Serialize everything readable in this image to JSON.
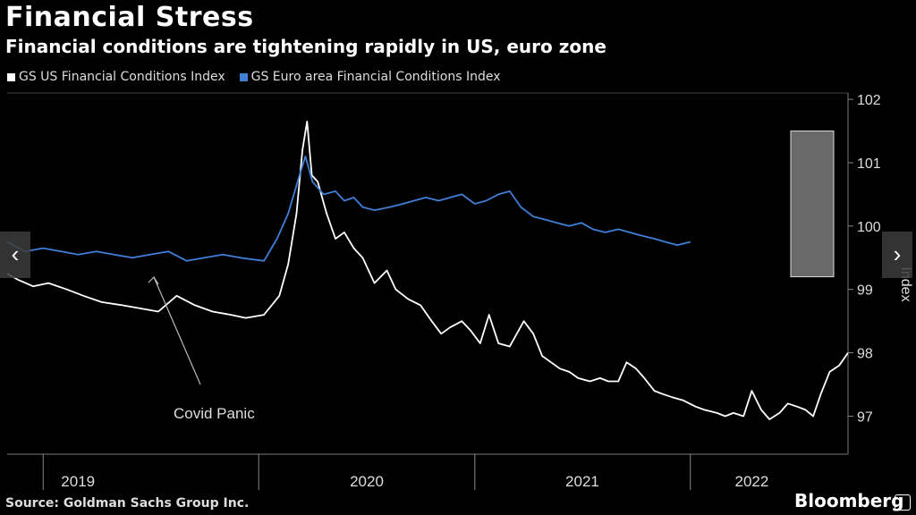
{
  "title": "Financial Stress",
  "subtitle": "Financial conditions are tightening rapidly in US, euro zone",
  "source": "Source: Goldman Sachs Group Inc.",
  "brand": "Bloomberg",
  "icons": {
    "prev": "chevron-left-icon",
    "next": "chevron-right-icon"
  },
  "colors": {
    "us": "#ffffff",
    "euro": "#3f7fd6",
    "background": "#000000",
    "highlight": "#bfbfbf"
  },
  "annotation": "Covid Panic",
  "chart_data": {
    "type": "line",
    "title": "Financial Stress",
    "ylabel": "Index",
    "ylim": [
      96.4,
      102.1
    ],
    "yticks": [
      97,
      98,
      99,
      100,
      101,
      102
    ],
    "xlim": [
      "2018-11-01",
      "2022-09-25"
    ],
    "xticks": [
      "2019",
      "2020",
      "2021",
      "2022"
    ],
    "legend": "top-left",
    "grid": false,
    "series": [
      {
        "name": "GS US Financial Conditions Index",
        "color": "#ffffff",
        "points": [
          [
            "2018-11-01",
            99.25
          ],
          [
            "2018-11-20",
            99.15
          ],
          [
            "2018-12-15",
            99.05
          ],
          [
            "2019-01-10",
            99.1
          ],
          [
            "2019-02-10",
            99.0
          ],
          [
            "2019-03-10",
            98.9
          ],
          [
            "2019-04-10",
            98.8
          ],
          [
            "2019-05-15",
            98.75
          ],
          [
            "2019-06-15",
            98.7
          ],
          [
            "2019-07-15",
            98.65
          ],
          [
            "2019-08-15",
            98.9
          ],
          [
            "2019-09-15",
            98.75
          ],
          [
            "2019-10-15",
            98.65
          ],
          [
            "2019-11-15",
            98.6
          ],
          [
            "2019-12-10",
            98.55
          ],
          [
            "2020-01-10",
            98.6
          ],
          [
            "2020-02-05",
            98.9
          ],
          [
            "2020-02-20",
            99.4
          ],
          [
            "2020-03-05",
            100.2
          ],
          [
            "2020-03-15",
            101.2
          ],
          [
            "2020-03-23",
            101.65
          ],
          [
            "2020-03-31",
            100.8
          ],
          [
            "2020-04-10",
            100.7
          ],
          [
            "2020-04-25",
            100.2
          ],
          [
            "2020-05-10",
            99.8
          ],
          [
            "2020-05-25",
            99.9
          ],
          [
            "2020-06-10",
            99.65
          ],
          [
            "2020-06-25",
            99.5
          ],
          [
            "2020-07-15",
            99.1
          ],
          [
            "2020-08-05",
            99.3
          ],
          [
            "2020-08-20",
            99.0
          ],
          [
            "2020-09-10",
            98.85
          ],
          [
            "2020-10-01",
            98.75
          ],
          [
            "2020-10-20",
            98.5
          ],
          [
            "2020-11-05",
            98.3
          ],
          [
            "2020-11-20",
            98.4
          ],
          [
            "2020-12-10",
            98.5
          ],
          [
            "2020-12-25",
            98.35
          ],
          [
            "2021-01-10",
            98.15
          ],
          [
            "2021-01-25",
            98.6
          ],
          [
            "2021-02-10",
            98.15
          ],
          [
            "2021-03-01",
            98.1
          ],
          [
            "2021-03-25",
            98.5
          ],
          [
            "2021-04-10",
            98.3
          ],
          [
            "2021-04-25",
            97.95
          ],
          [
            "2021-05-10",
            97.85
          ],
          [
            "2021-05-25",
            97.75
          ],
          [
            "2021-06-10",
            97.7
          ],
          [
            "2021-06-25",
            97.6
          ],
          [
            "2021-07-15",
            97.55
          ],
          [
            "2021-08-01",
            97.6
          ],
          [
            "2021-08-15",
            97.55
          ],
          [
            "2021-09-01",
            97.55
          ],
          [
            "2021-09-15",
            97.85
          ],
          [
            "2021-10-01",
            97.75
          ],
          [
            "2021-10-15",
            97.6
          ],
          [
            "2021-11-01",
            97.4
          ],
          [
            "2021-11-15",
            97.35
          ],
          [
            "2021-12-01",
            97.3
          ],
          [
            "2021-12-20",
            97.25
          ],
          [
            "2022-01-10",
            97.15
          ],
          [
            "2022-01-25",
            97.1
          ],
          [
            "2022-02-15",
            97.05
          ],
          [
            "2022-03-01",
            97.0
          ],
          [
            "2022-03-15",
            97.05
          ],
          [
            "2022-04-01",
            97.0
          ],
          [
            "2022-04-15",
            97.4
          ],
          [
            "2022-05-01",
            97.1
          ],
          [
            "2022-05-15",
            96.95
          ],
          [
            "2022-06-01",
            97.05
          ],
          [
            "2022-06-15",
            97.2
          ],
          [
            "2022-07-01",
            97.15
          ],
          [
            "2022-07-15",
            97.1
          ],
          [
            "2022-07-28",
            97.0
          ],
          [
            "2022-08-10",
            97.35
          ],
          [
            "2022-08-25",
            97.7
          ],
          [
            "2022-09-10",
            97.8
          ],
          [
            "2022-09-25",
            98.0
          ]
        ]
      },
      {
        "name": "GS Euro area Financial Conditions Index",
        "color": "#3f7fd6",
        "points": [
          [
            "2018-11-01",
            99.75
          ],
          [
            "2018-12-01",
            99.6
          ],
          [
            "2019-01-01",
            99.65
          ],
          [
            "2019-02-01",
            99.6
          ],
          [
            "2019-03-01",
            99.55
          ],
          [
            "2019-04-01",
            99.6
          ],
          [
            "2019-05-01",
            99.55
          ],
          [
            "2019-06-01",
            99.5
          ],
          [
            "2019-07-01",
            99.55
          ],
          [
            "2019-08-01",
            99.6
          ],
          [
            "2019-09-01",
            99.45
          ],
          [
            "2019-10-01",
            99.5
          ],
          [
            "2019-11-01",
            99.55
          ],
          [
            "2019-12-01",
            99.5
          ],
          [
            "2020-01-10",
            99.45
          ],
          [
            "2020-02-01",
            99.8
          ],
          [
            "2020-02-20",
            100.2
          ],
          [
            "2020-03-10",
            100.8
          ],
          [
            "2020-03-20",
            101.1
          ],
          [
            "2020-04-01",
            100.7
          ],
          [
            "2020-04-20",
            100.5
          ],
          [
            "2020-05-10",
            100.55
          ],
          [
            "2020-05-25",
            100.4
          ],
          [
            "2020-06-10",
            100.45
          ],
          [
            "2020-06-25",
            100.3
          ],
          [
            "2020-07-15",
            100.25
          ],
          [
            "2020-08-10",
            100.3
          ],
          [
            "2020-09-01",
            100.35
          ],
          [
            "2020-09-20",
            100.4
          ],
          [
            "2020-10-10",
            100.45
          ],
          [
            "2020-11-01",
            100.4
          ],
          [
            "2020-11-20",
            100.45
          ],
          [
            "2020-12-10",
            100.5
          ],
          [
            "2021-01-01",
            100.35
          ],
          [
            "2021-01-20",
            100.4
          ],
          [
            "2021-02-10",
            100.5
          ],
          [
            "2021-03-01",
            100.55
          ],
          [
            "2021-03-20",
            100.3
          ],
          [
            "2021-04-10",
            100.15
          ],
          [
            "2021-05-01",
            100.1
          ],
          [
            "2021-05-20",
            100.05
          ],
          [
            "2021-06-10",
            100.0
          ],
          [
            "2021-07-01",
            100.05
          ],
          [
            "2021-07-20",
            99.95
          ],
          [
            "2021-08-10",
            99.9
          ],
          [
            "2021-09-01",
            99.95
          ],
          [
            "2021-09-20",
            99.9
          ],
          [
            "2021-10-10",
            99.85
          ],
          [
            "2021-11-01",
            99.8
          ],
          [
            "2021-11-20",
            99.75
          ],
          [
            "2021-12-10",
            99.7
          ],
          [
            "2022-01-01",
            99.75
          ]
        ]
      }
    ]
  }
}
